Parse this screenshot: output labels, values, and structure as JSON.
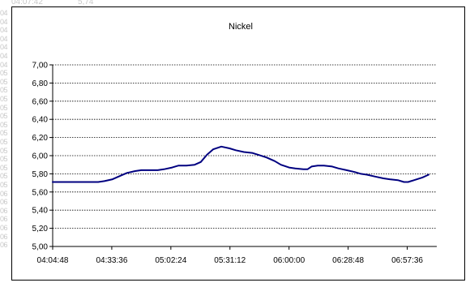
{
  "sheet": {
    "top_cells": [
      "04:07:42",
      "5,74"
    ],
    "row_fragments": [
      "04",
      "04",
      "04",
      "04",
      "04",
      "04",
      "04",
      "05",
      "05",
      "05",
      "05",
      "05",
      "05",
      "05",
      "05",
      "05",
      "05",
      "05",
      "05",
      "05",
      "05",
      "06",
      "06",
      "06",
      "06",
      "06",
      "06",
      "06"
    ]
  },
  "chart_data": {
    "type": "line",
    "title": "Nickel",
    "xlabel": "",
    "ylabel": "",
    "x_tick_labels": [
      "04:04:48",
      "04:33:36",
      "05:02:24",
      "05:31:12",
      "06:00:00",
      "06:28:48",
      "06:57:36"
    ],
    "y_tick_labels": [
      "5,00",
      "5,20",
      "5,40",
      "5,60",
      "5,80",
      "6,00",
      "6,20",
      "6,40",
      "6,60",
      "6,80",
      "7,00"
    ],
    "ylim": [
      5.0,
      7.0
    ],
    "xlim": [
      "04:04:48",
      "07:12:00"
    ],
    "grid": "horizontal dashed",
    "legend": "none",
    "color": "#000080",
    "series": [
      {
        "x": [
          "04:04:48",
          "04:27:00",
          "04:30:00",
          "04:34:00",
          "04:38:00",
          "04:41:00",
          "04:45:00",
          "04:48:00",
          "04:52:00",
          "04:56:00",
          "04:59:00",
          "05:03:00",
          "05:06:00",
          "05:10:00",
          "05:14:00",
          "05:17:00",
          "05:20:00",
          "05:23:00",
          "05:27:00",
          "05:31:00",
          "05:34:00",
          "05:38:00",
          "05:42:00",
          "05:45:00",
          "05:49:00",
          "05:53:00",
          "05:56:00",
          "06:00:00",
          "06:03:00",
          "06:07:00",
          "06:09:00",
          "06:11:00",
          "06:14:00",
          "06:17:00",
          "06:21:00",
          "06:24:00",
          "06:28:00",
          "06:32:00",
          "06:35:00",
          "06:38:00",
          "06:42:00",
          "06:46:00",
          "06:49:00",
          "06:53:00",
          "06:56:00",
          "06:58:00",
          "07:01:00",
          "07:05:00",
          "07:08:00"
        ],
        "values": [
          5.71,
          5.71,
          5.72,
          5.74,
          5.78,
          5.81,
          5.83,
          5.84,
          5.84,
          5.84,
          5.85,
          5.87,
          5.89,
          5.89,
          5.9,
          5.93,
          6.01,
          6.07,
          6.1,
          6.08,
          6.06,
          6.04,
          6.03,
          6.01,
          5.98,
          5.94,
          5.9,
          5.87,
          5.86,
          5.85,
          5.85,
          5.88,
          5.89,
          5.89,
          5.88,
          5.86,
          5.84,
          5.82,
          5.8,
          5.79,
          5.77,
          5.75,
          5.74,
          5.73,
          5.71,
          5.71,
          5.73,
          5.76,
          5.79
        ]
      }
    ]
  }
}
